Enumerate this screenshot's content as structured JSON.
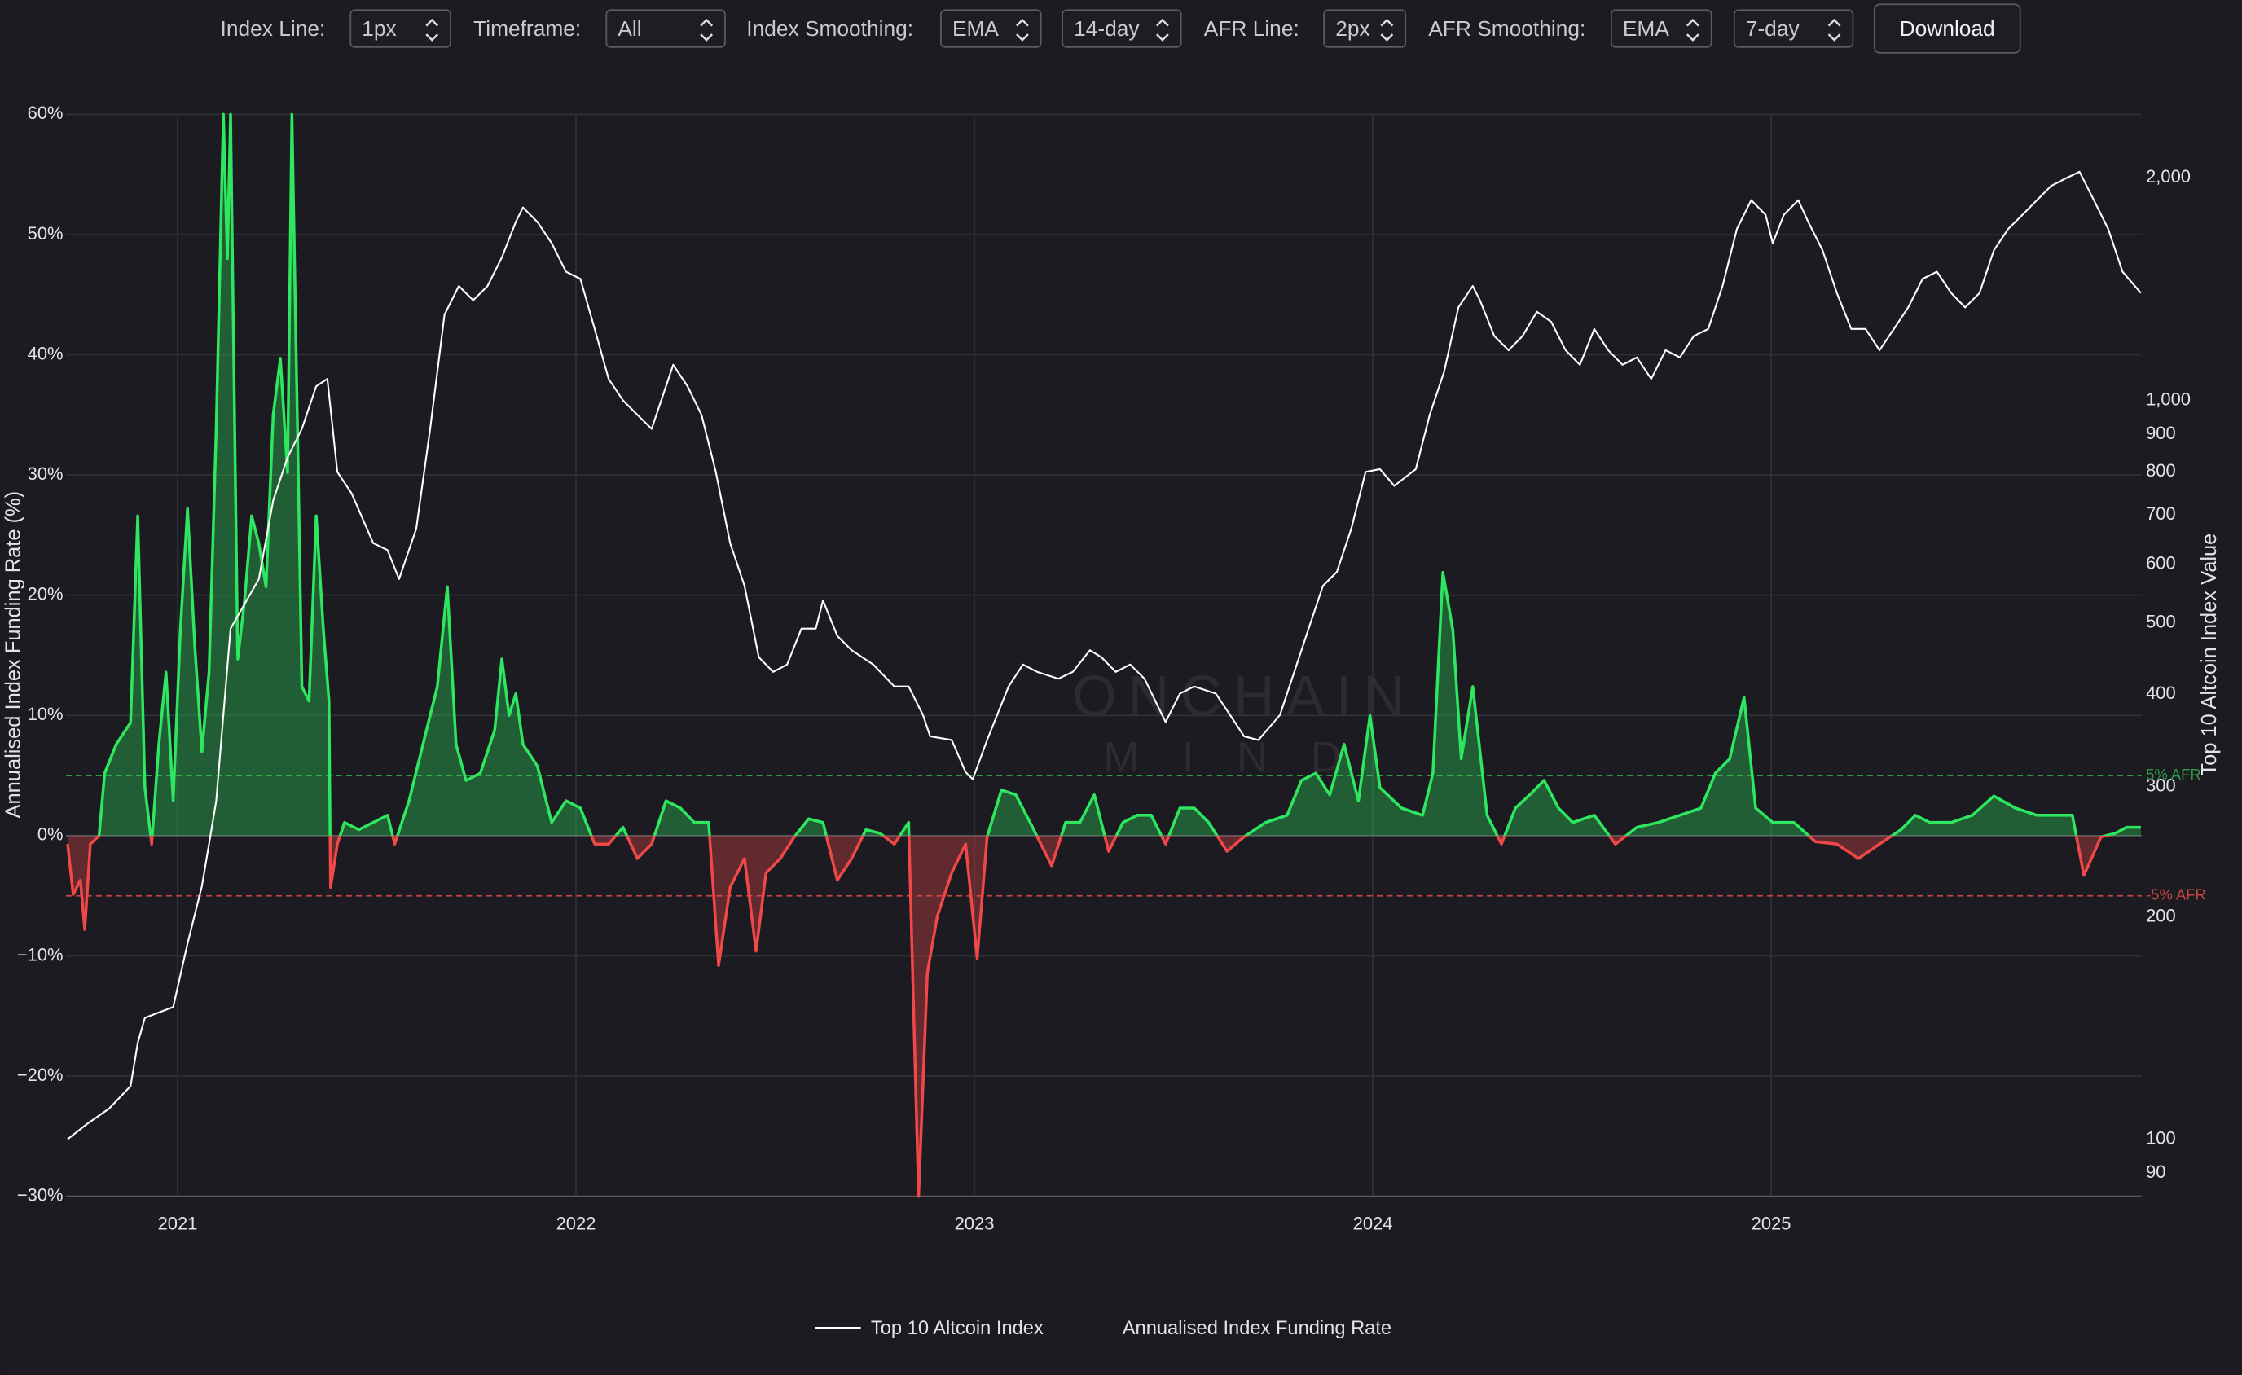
{
  "controls": [
    {
      "label": "Index Line:",
      "value": "1px"
    },
    {
      "label": "Timeframe:",
      "value": "All"
    },
    {
      "label": "Index Smoothing:",
      "value": "EMA"
    },
    {
      "value": "14-day"
    },
    {
      "label": "AFR Line:",
      "value": "2px"
    },
    {
      "label": "AFR Smoothing:",
      "value": "EMA"
    },
    {
      "value": "7-day"
    }
  ],
  "download_button": "Download",
  "chart_data": {
    "type": "line",
    "watermark": [
      "ONCHAIN",
      "MIND"
    ],
    "y_label": "Annualised Index Funding Rate (%)",
    "y2_label": "Top 10 Altcoin Index Value",
    "xlim": [
      2020.72,
      2025.93
    ],
    "xticks": [
      2021,
      2022,
      2023,
      2024,
      2025
    ],
    "ylim": [
      -30,
      60
    ],
    "yticks": [
      {
        "value": 60,
        "label": "60%"
      },
      {
        "value": 50,
        "label": "50%"
      },
      {
        "value": 40,
        "label": "40%"
      },
      {
        "value": 30,
        "label": "30%"
      },
      {
        "value": 20,
        "label": "20%"
      },
      {
        "value": 10,
        "label": "10%"
      },
      {
        "value": 0,
        "label": "0%"
      },
      {
        "value": -10,
        "label": "−10%"
      },
      {
        "value": -20,
        "label": "−20%"
      },
      {
        "value": -30,
        "label": "−30%"
      }
    ],
    "y2lim": [
      83.7,
      2438
    ],
    "y2_log": true,
    "y2ticks": [
      {
        "value": 2000,
        "label": "2,000"
      },
      {
        "value": 1000,
        "label": "1,000"
      },
      900,
      800,
      700,
      600,
      500,
      400,
      300,
      200,
      100,
      90
    ],
    "grid": true,
    "reference_lines": [
      {
        "value": 5,
        "label": "5% AFR",
        "color": "#2f9a46"
      },
      {
        "value": -5,
        "label": "-5% AFR",
        "color": "#c84444"
      }
    ],
    "series": [
      {
        "name": "Top 10 Altcoin Index",
        "color": "#ffffff",
        "axis": "y2",
        "x": [
          2020.724,
          2020.774,
          2020.828,
          2020.882,
          2020.9,
          2020.918,
          2020.989,
          2021.025,
          2021.061,
          2021.079,
          2021.097,
          2021.133,
          2021.204,
          2021.24,
          2021.276,
          2021.312,
          2021.348,
          2021.376,
          2021.401,
          2021.437,
          2021.491,
          2021.527,
          2021.556,
          2021.599,
          2021.634,
          2021.67,
          2021.706,
          2021.742,
          2021.778,
          2021.814,
          2021.849,
          2021.867,
          2021.903,
          2021.939,
          2021.975,
          2022.011,
          2022.047,
          2022.082,
          2022.118,
          2022.154,
          2022.19,
          2022.226,
          2022.244,
          2022.28,
          2022.315,
          2022.351,
          2022.387,
          2022.423,
          2022.459,
          2022.495,
          2022.53,
          2022.566,
          2022.602,
          2022.62,
          2022.656,
          2022.692,
          2022.746,
          2022.799,
          2022.835,
          2022.871,
          2022.889,
          2022.943,
          2022.978,
          2022.996,
          2023.032,
          2023.086,
          2023.122,
          2023.158,
          2023.211,
          2023.247,
          2023.29,
          2023.319,
          2023.355,
          2023.391,
          2023.427,
          2023.48,
          2023.516,
          2023.552,
          2023.606,
          2023.642,
          2023.677,
          2023.713,
          2023.767,
          2023.803,
          2023.839,
          2023.875,
          2023.91,
          2023.946,
          2023.982,
          2024.018,
          2024.054,
          2024.108,
          2024.143,
          2024.179,
          2024.215,
          2024.251,
          2024.269,
          2024.305,
          2024.341,
          2024.376,
          2024.412,
          2024.448,
          2024.484,
          2024.52,
          2024.556,
          2024.591,
          2024.627,
          2024.663,
          2024.699,
          2024.735,
          2024.771,
          2024.806,
          2024.842,
          2024.878,
          2024.914,
          2024.95,
          2024.986,
          2025.004,
          2025.032,
          2025.068,
          2025.093,
          2025.129,
          2025.165,
          2025.201,
          2025.237,
          2025.272,
          2025.308,
          2025.344,
          2025.38,
          2025.416,
          2025.452,
          2025.487,
          2025.523,
          2025.559,
          2025.595,
          2025.631,
          2025.667,
          2025.703,
          2025.738,
          2025.774,
          2025.81,
          2025.846,
          2025.882,
          2025.928
        ],
        "values": [
          100,
          105,
          110,
          118,
          135,
          146,
          151,
          184,
          220,
          251,
          287,
          491,
          573,
          732,
          837,
          915,
          1045,
          1069,
          800,
          748,
          641,
          627,
          573,
          670,
          915,
          1306,
          1428,
          1366,
          1428,
          1561,
          1744,
          1824,
          1744,
          1632,
          1493,
          1460,
          1249,
          1069,
          1000,
          956,
          915,
          1045,
          1117,
          1045,
          956,
          800,
          641,
          561,
          449,
          429,
          439,
          491,
          491,
          536,
          480,
          459,
          439,
          410,
          410,
          375,
          351,
          347,
          314,
          307,
          347,
          410,
          439,
          429,
          420,
          429,
          459,
          449,
          429,
          439,
          420,
          367,
          401,
          410,
          401,
          375,
          351,
          347,
          375,
          429,
          491,
          561,
          586,
          670,
          800,
          807,
          766,
          807,
          956,
          1093,
          1336,
          1428,
          1366,
          1222,
          1169,
          1222,
          1318,
          1277,
          1169,
          1117,
          1249,
          1169,
          1117,
          1143,
          1069,
          1169,
          1143,
          1222,
          1249,
          1428,
          1706,
          1866,
          1783,
          1632,
          1783,
          1866,
          1744,
          1596,
          1397,
          1249,
          1249,
          1169,
          1249,
          1336,
          1460,
          1493,
          1397,
          1336,
          1397,
          1596,
          1706,
          1783,
          1866,
          1951,
          1995,
          2039,
          1866,
          1706,
          1493,
          1397
        ]
      },
      {
        "name": "Annualised Index Funding Rate",
        "color": "#2ee65f",
        "negative_color": "#f04848",
        "x": [
          2020.724,
          2020.738,
          2020.756,
          2020.767,
          2020.781,
          2020.803,
          2020.817,
          2020.846,
          2020.882,
          2020.9,
          2020.918,
          2020.935,
          2020.953,
          2020.971,
          2020.989,
          2021.007,
          2021.025,
          2021.043,
          2021.061,
          2021.079,
          2021.097,
          2021.115,
          2021.125,
          2021.133,
          2021.151,
          2021.168,
          2021.186,
          2021.204,
          2021.222,
          2021.24,
          2021.258,
          2021.276,
          2021.287,
          2021.301,
          2021.312,
          2021.33,
          2021.348,
          2021.366,
          2021.38,
          2021.384,
          2021.401,
          2021.419,
          2021.455,
          2021.491,
          2021.527,
          2021.545,
          2021.581,
          2021.616,
          2021.652,
          2021.677,
          2021.699,
          2021.724,
          2021.76,
          2021.796,
          2021.814,
          2021.832,
          2021.849,
          2021.867,
          2021.903,
          2021.939,
          2021.975,
          2022.011,
          2022.047,
          2022.082,
          2022.118,
          2022.154,
          2022.19,
          2022.226,
          2022.262,
          2022.297,
          2022.333,
          2022.358,
          2022.387,
          2022.423,
          2022.452,
          2022.477,
          2022.513,
          2022.548,
          2022.584,
          2022.62,
          2022.656,
          2022.692,
          2022.728,
          2022.763,
          2022.799,
          2022.835,
          2022.86,
          2022.882,
          2022.907,
          2022.943,
          2022.978,
          2023.007,
          2023.032,
          2023.068,
          2023.104,
          2023.14,
          2023.194,
          2023.229,
          2023.265,
          2023.301,
          2023.337,
          2023.373,
          2023.409,
          2023.444,
          2023.48,
          2023.516,
          2023.552,
          2023.588,
          2023.634,
          2023.677,
          2023.731,
          2023.785,
          2023.821,
          2023.857,
          2023.892,
          2023.928,
          2023.964,
          2023.993,
          2024.018,
          2024.072,
          2024.125,
          2024.151,
          2024.176,
          2024.201,
          2024.222,
          2024.251,
          2024.287,
          2024.323,
          2024.358,
          2024.394,
          2024.43,
          2024.466,
          2024.502,
          2024.556,
          2024.609,
          2024.663,
          2024.717,
          2024.771,
          2024.824,
          2024.86,
          2024.896,
          2024.932,
          2024.961,
          2025.004,
          2025.057,
          2025.111,
          2025.165,
          2025.219,
          2025.272,
          2025.326,
          2025.362,
          2025.398,
          2025.452,
          2025.505,
          2025.559,
          2025.613,
          2025.667,
          2025.72,
          2025.756,
          2025.785,
          2025.828,
          2025.864,
          2025.892,
          2025.928
        ],
        "values": [
          -0.7,
          -4.9,
          -3.7,
          -7.8,
          -0.7,
          0,
          5.2,
          7.6,
          9.4,
          26.6,
          4.0,
          -0.7,
          7.6,
          13.6,
          2.9,
          17.1,
          27.2,
          15.9,
          7.0,
          13.6,
          33.8,
          60,
          48.0,
          60,
          14.7,
          19.5,
          26.6,
          24.3,
          20.7,
          35.0,
          39.7,
          30.2,
          60,
          33.8,
          12.4,
          11.2,
          26.6,
          17.1,
          11.2,
          -4.3,
          -0.7,
          1.1,
          0.5,
          1.1,
          1.7,
          -0.7,
          2.9,
          7.6,
          12.4,
          20.7,
          7.6,
          4.6,
          5.2,
          8.8,
          14.7,
          10.0,
          11.8,
          7.6,
          5.8,
          1.1,
          2.9,
          2.3,
          -0.7,
          -0.7,
          0.7,
          -1.9,
          -0.7,
          2.9,
          2.3,
          1.1,
          1.1,
          -10.8,
          -4.3,
          -1.9,
          -9.6,
          -3.1,
          -1.9,
          -0.1,
          1.4,
          1.1,
          -3.7,
          -1.9,
          0.5,
          0.2,
          -0.7,
          1.1,
          -30,
          -11.4,
          -6.7,
          -3.1,
          -0.7,
          -10.2,
          -0.1,
          3.8,
          3.4,
          1.1,
          -2.5,
          1.1,
          1.1,
          3.4,
          -1.3,
          1.1,
          1.7,
          1.7,
          -0.7,
          2.3,
          2.3,
          1.1,
          -1.3,
          -0.1,
          1.1,
          1.7,
          4.6,
          5.2,
          3.4,
          7.6,
          2.9,
          10.0,
          4.0,
          2.3,
          1.7,
          5.2,
          21.9,
          17.1,
          6.4,
          12.4,
          1.7,
          -0.7,
          2.3,
          3.4,
          4.6,
          2.3,
          1.1,
          1.7,
          -0.7,
          0.7,
          1.1,
          1.7,
          2.3,
          5.2,
          6.4,
          11.5,
          2.3,
          1.1,
          1.1,
          -0.5,
          -0.7,
          -1.9,
          -0.7,
          0.5,
          1.7,
          1.1,
          1.1,
          1.7,
          3.3,
          2.3,
          1.7,
          1.7,
          1.7,
          -3.3,
          -0.1,
          0.2,
          0.7,
          0.7
        ]
      }
    ]
  }
}
